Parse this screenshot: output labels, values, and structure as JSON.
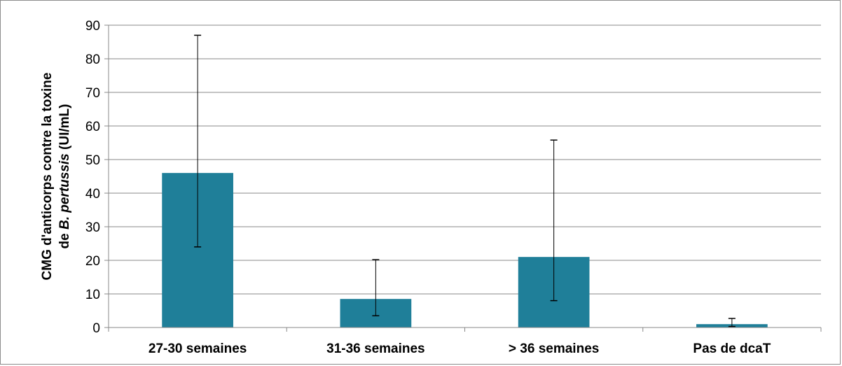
{
  "chart_data": {
    "type": "bar",
    "categories": [
      "27-30 semaines",
      "31-36 semaines",
      "> 36 semaines",
      "Pas de dcaT"
    ],
    "values": [
      46,
      8.5,
      21,
      1
    ],
    "error_low": [
      24,
      3.5,
      8,
      0.3
    ],
    "error_high": [
      87,
      20.2,
      55.8,
      2.7
    ],
    "ylabel_line1": "CMG d'anticorps contre la toxine",
    "ylabel_line2_prefix": "de ",
    "ylabel_line2_italic": "B. pertussis",
    "ylabel_line2_suffix": " (UI/mL)",
    "ylim": [
      0,
      90
    ],
    "yticks": [
      0,
      10,
      20,
      30,
      40,
      50,
      60,
      70,
      80,
      90
    ],
    "grid": true,
    "bar_color": "#1f7f99",
    "grid_color": "#888888"
  }
}
